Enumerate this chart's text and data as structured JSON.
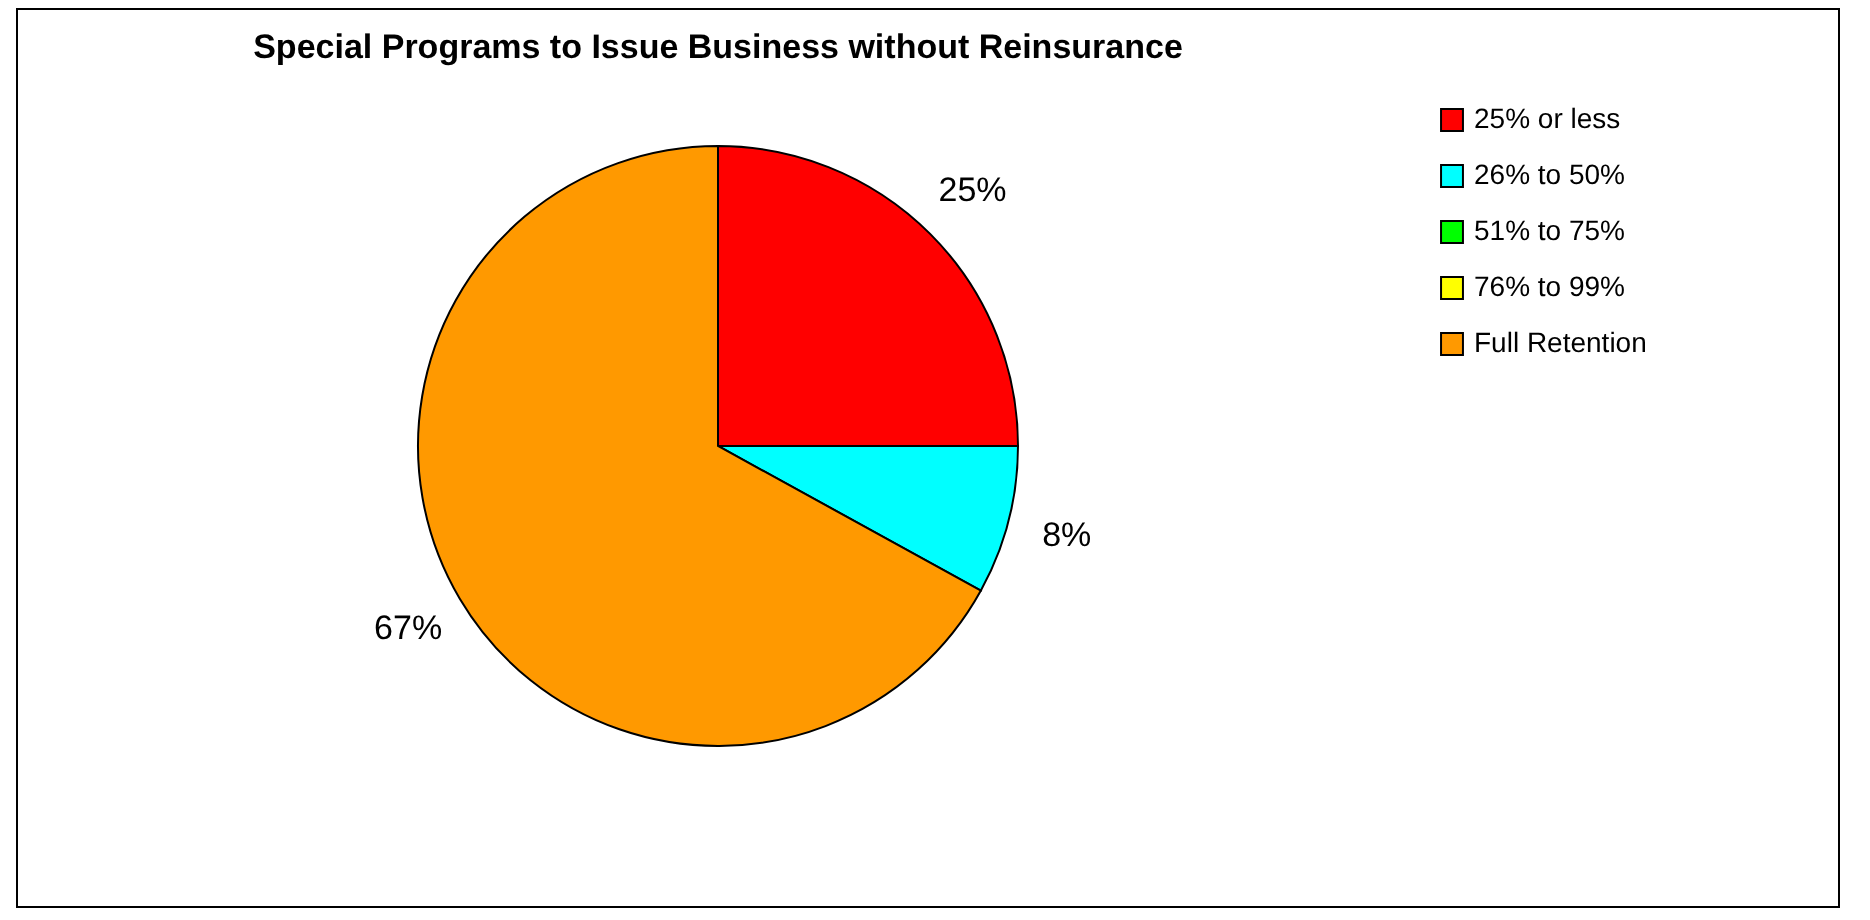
{
  "chart_data": {
    "type": "pie",
    "title": "Special Programs to Issue Business without Reinsurance",
    "categories": [
      "25% or less",
      "26% to 50%",
      "51% to 75%",
      "76% to 99%",
      "Full Retention"
    ],
    "values": [
      25,
      8,
      0,
      0,
      67
    ],
    "colors": [
      "#ff0000",
      "#00ffff",
      "#00ff00",
      "#ffff00",
      "#ff9900"
    ],
    "value_labels": [
      "25%",
      "8%",
      null,
      null,
      "67%"
    ],
    "legend": "right"
  }
}
